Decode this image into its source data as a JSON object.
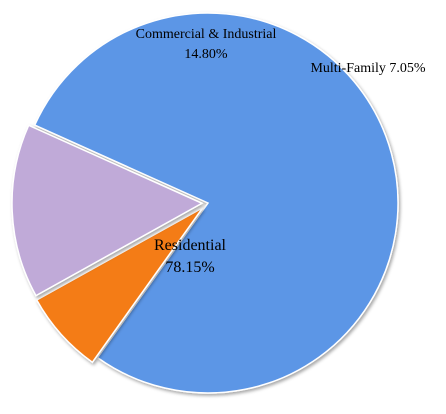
{
  "chart_data": {
    "type": "pie",
    "slices": [
      {
        "label": "Residential",
        "percent_label": "78.15%",
        "value": 78.15,
        "color": "#5b96e6"
      },
      {
        "label": "Multi-Family",
        "percent_label": "7.05%",
        "value": 7.05,
        "color": "#f47c18"
      },
      {
        "label": "Commercial & Industrial",
        "percent_label": "14.80%",
        "value": 14.8,
        "color": "#c0aad8"
      }
    ],
    "legend": "none"
  }
}
